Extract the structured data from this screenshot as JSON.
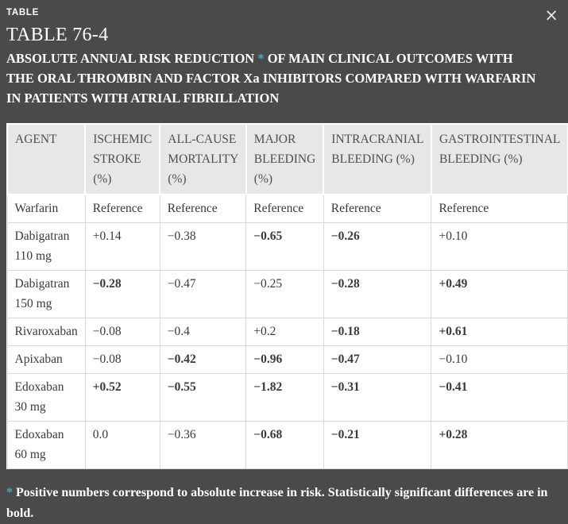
{
  "modal": {
    "kicker": "TABLE",
    "close_glyph": "×"
  },
  "header": {
    "title": "TABLE 76-4",
    "subtitle_before": "ABSOLUTE ANNUAL RISK REDUCTION ",
    "subtitle_marker": "*",
    "subtitle_after": " OF MAIN CLINICAL OUTCOMES WITH THE ORAL THROMBIN AND FACTOR Xa INHIBITORS COMPARED WITH WARFARIN IN PATIENTS WITH ATRIAL FIBRILLATION"
  },
  "colors": {
    "background": "#4a4a48",
    "accent": "#4ba4c8",
    "header_row_bg": "#e7e7e7",
    "cell_bg": "#ffffff",
    "cell_border": "#d9d9d9"
  },
  "table": {
    "columns": [
      "AGENT",
      "ISCHEMIC STROKE (%)",
      "ALL-CAUSE MORTALITY (%)",
      "MAJOR BLEEDING (%)",
      "INTRACRANIAL BLEEDING (%)",
      "GASTROINTESTINAL BLEEDING (%)"
    ],
    "rows": [
      {
        "agent": "Warfarin",
        "cells": [
          "Reference",
          "Reference",
          "Reference",
          "Reference",
          "Reference"
        ],
        "bold": [
          false,
          false,
          false,
          false,
          false
        ]
      },
      {
        "agent": "Dabigatran 110 mg",
        "cells": [
          "+0.14",
          "−0.38",
          "−0.65",
          "−0.26",
          "+0.10"
        ],
        "bold": [
          false,
          false,
          true,
          true,
          false
        ]
      },
      {
        "agent": "Dabigatran 150 mg",
        "cells": [
          "−0.28",
          "−0.47",
          "−0.25",
          "−0.28",
          "+0.49"
        ],
        "bold": [
          true,
          false,
          false,
          true,
          true
        ]
      },
      {
        "agent": "Rivaroxaban",
        "cells": [
          "−0.08",
          "−0.4",
          "+0.2",
          "−0.18",
          "+0.61"
        ],
        "bold": [
          false,
          false,
          false,
          true,
          true
        ]
      },
      {
        "agent": "Apixaban",
        "cells": [
          "−0.08",
          "−0.42",
          "−0.96",
          "−0.47",
          "−0.10"
        ],
        "bold": [
          false,
          true,
          true,
          true,
          false
        ]
      },
      {
        "agent": "Edoxaban 30 mg",
        "cells": [
          "+0.52",
          "−0.55",
          "−1.82",
          "−0.31",
          "−0.41"
        ],
        "bold": [
          true,
          true,
          true,
          true,
          true
        ]
      },
      {
        "agent": "Edoxaban 60 mg",
        "cells": [
          "0.0",
          "−0.36",
          "−0.68",
          "−0.21",
          "+0.28"
        ],
        "bold": [
          false,
          false,
          true,
          true,
          true
        ]
      }
    ]
  },
  "footnote": {
    "marker": "*",
    "text": " Positive numbers correspond to absolute increase in risk. Statistically significant differences are in bold."
  }
}
